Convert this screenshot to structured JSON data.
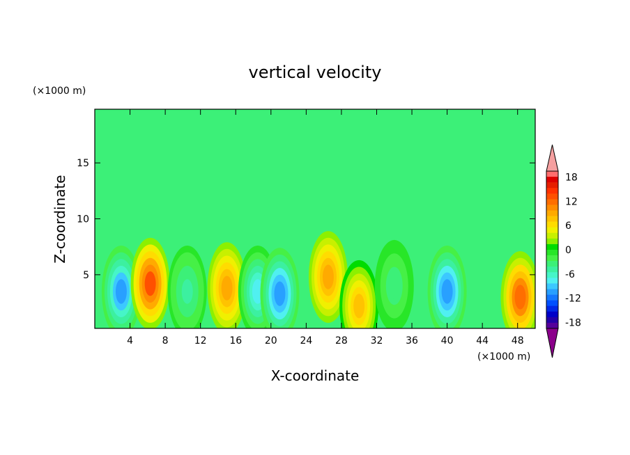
{
  "chart_data": {
    "type": "heatmap",
    "title": "vertical velocity",
    "xlabel": "X-coordinate",
    "ylabel": "Z-coordinate",
    "x_unit_label": "(×1000 m)",
    "y_unit_label": "(×1000 m)",
    "xlim": [
      0,
      50
    ],
    "ylim": [
      0.2,
      19.8
    ],
    "x_ticks": [
      4,
      8,
      12,
      16,
      20,
      24,
      28,
      32,
      36,
      40,
      44,
      48
    ],
    "y_ticks": [
      5,
      10,
      15
    ],
    "grid": false,
    "colorbar": {
      "placement": "right",
      "tick_labels": [
        "18",
        "12",
        "6",
        "0",
        "-6",
        "-12",
        "-18"
      ],
      "levels": [
        -21,
        -19.5,
        -18,
        -16.5,
        -15,
        -13.5,
        -12,
        -10.5,
        -9,
        -7.5,
        -6,
        -4.5,
        -3,
        -1.5,
        0,
        1.5,
        3,
        4.5,
        6,
        7.5,
        9,
        10.5,
        12,
        13.5,
        15,
        16.5,
        18,
        19.5,
        21
      ],
      "colors": [
        "#8b008b",
        "#56009b",
        "#2400a8",
        "#0000c8",
        "#0028e6",
        "#0050ff",
        "#1478ff",
        "#28a0ff",
        "#3cc8ff",
        "#50f0f0",
        "#46f5c8",
        "#3cf0a0",
        "#3cf078",
        "#46f046",
        "#28e628",
        "#00dc00",
        "#8cf000",
        "#c8f000",
        "#f0f000",
        "#ffdc00",
        "#ffc300",
        "#ffaa00",
        "#ff8c00",
        "#ff6e00",
        "#ff5000",
        "#ff3200",
        "#e61e00",
        "#dc0000",
        "#ff6e6e",
        "#f5a0a0"
      ]
    },
    "cells": [
      {
        "x": 3,
        "z": 3.5,
        "w": -11
      },
      {
        "x": 6.3,
        "z": 4.2,
        "w": 14
      },
      {
        "x": 10.5,
        "z": 3.5,
        "w": -5
      },
      {
        "x": 15,
        "z": 3.8,
        "w": 9
      },
      {
        "x": 18.5,
        "z": 3.5,
        "w": -8
      },
      {
        "x": 21,
        "z": 3.3,
        "w": -12
      },
      {
        "x": 26.5,
        "z": 4.8,
        "w": 10
      },
      {
        "x": 30,
        "z": 2.2,
        "w": 8
      },
      {
        "x": 34,
        "z": 4.0,
        "w": -4
      },
      {
        "x": 40,
        "z": 3.5,
        "w": -12
      },
      {
        "x": 48.3,
        "z": 3.0,
        "w": 13
      }
    ]
  }
}
